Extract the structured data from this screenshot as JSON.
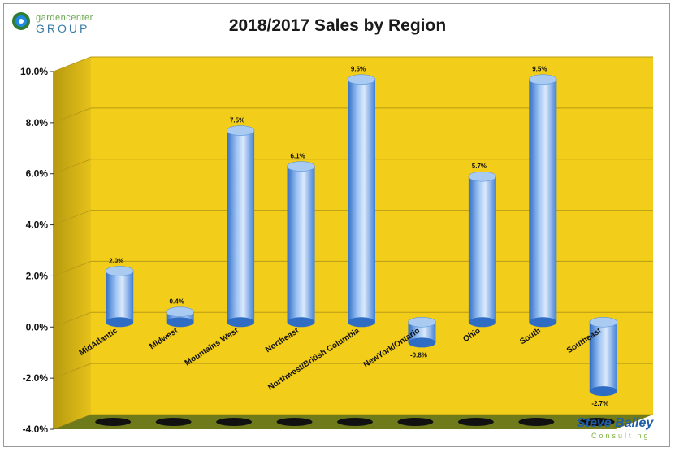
{
  "header": {
    "title": "2018/2017 Sales by Region"
  },
  "branding": {
    "left_logo_small": "gardencenter",
    "left_logo_large": "GROUP",
    "left_logo_badge": "THE",
    "right_logo_name": "Steve Bailey",
    "right_logo_sub": "Consulting"
  },
  "colors": {
    "wall": "#f2cd1a",
    "wall_dark": "#c9a814",
    "floor": "#6f7a1b",
    "bar_light": "#dbe9fb",
    "bar_mid": "#7fb0ec",
    "bar_dark": "#2f6cc4",
    "grid": "#b89c16"
  },
  "chart_data": {
    "type": "bar",
    "title": "2018/2017 Sales by Region",
    "xlabel": "",
    "ylabel": "",
    "ylim": [
      -4.0,
      10.0
    ],
    "yticks": [
      -4.0,
      -2.0,
      0.0,
      2.0,
      4.0,
      6.0,
      8.0,
      10.0
    ],
    "ytick_labels": [
      "-4.0%",
      "-2.0%",
      "0.0%",
      "2.0%",
      "4.0%",
      "6.0%",
      "8.0%",
      "10.0%"
    ],
    "grid": true,
    "legend": "none",
    "categories": [
      "MidAtlantic",
      "Midwest",
      "Mountains West",
      "Northeast",
      "Northwest/British Columbia",
      "NewYork/Ontario",
      "Ohio",
      "South",
      "Southeast"
    ],
    "values": [
      2.0,
      0.4,
      7.5,
      6.1,
      9.5,
      -0.8,
      5.7,
      9.5,
      -2.7
    ],
    "data_labels": [
      "2.0%",
      "0.4%",
      "7.5%",
      "6.1%",
      "9.5%",
      "-0.8%",
      "5.7%",
      "9.5%",
      "-2.7%"
    ]
  }
}
